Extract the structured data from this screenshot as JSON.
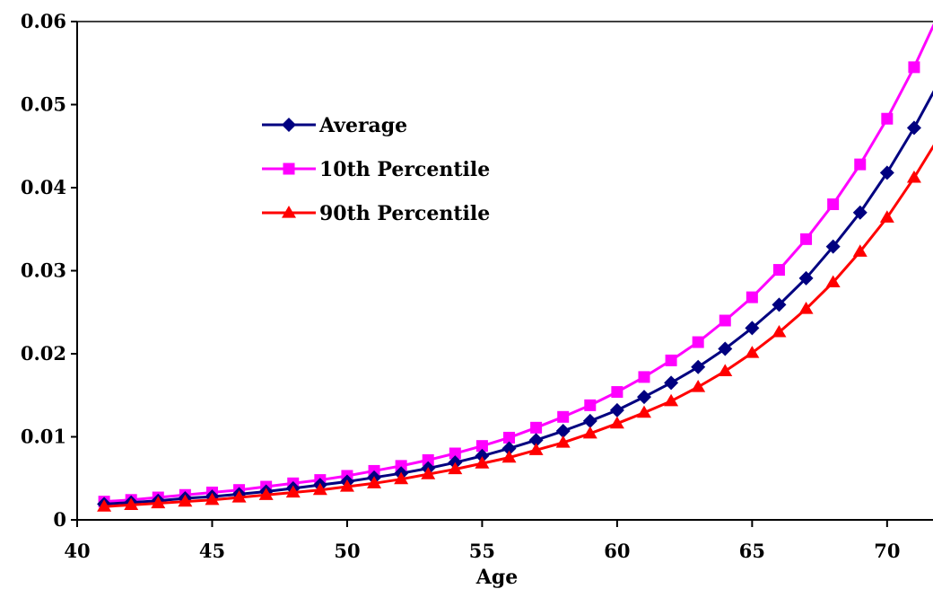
{
  "chart_data": {
    "type": "line",
    "title": "",
    "xlabel": "Age",
    "ylabel": "",
    "xlim": [
      40,
      71.7
    ],
    "ylim": [
      0,
      0.06
    ],
    "x_ticks": [
      "40",
      "45",
      "50",
      "55",
      "60",
      "65",
      "70"
    ],
    "y_ticks": [
      "0",
      "0.01",
      "0.02",
      "0.03",
      "0.04",
      "0.05",
      "0.06"
    ],
    "x": [
      41,
      42,
      43,
      44,
      45,
      46,
      47,
      48,
      49,
      50,
      51,
      52,
      53,
      54,
      55,
      56,
      57,
      58,
      59,
      60,
      61,
      62,
      63,
      64,
      65,
      66,
      67,
      68,
      69,
      70,
      71,
      72
    ],
    "grid": false,
    "legend_position": "upper-left-inside",
    "series": [
      {
        "name": "Average",
        "color": "#000080",
        "marker": "diamond",
        "values": [
          0.0019,
          0.0021,
          0.0023,
          0.0026,
          0.0028,
          0.0031,
          0.0034,
          0.0038,
          0.0042,
          0.0046,
          0.0051,
          0.0056,
          0.0062,
          0.0069,
          0.0077,
          0.0086,
          0.0096,
          0.0107,
          0.0119,
          0.0132,
          0.0148,
          0.0165,
          0.0184,
          0.0206,
          0.0231,
          0.0259,
          0.0291,
          0.0329,
          0.037,
          0.0418,
          0.0472,
          0.0532
        ]
      },
      {
        "name": "10th Percentile",
        "color": "#FF00FF",
        "marker": "square",
        "values": [
          0.0022,
          0.0024,
          0.0027,
          0.003,
          0.0033,
          0.0036,
          0.004,
          0.0044,
          0.0048,
          0.0053,
          0.0059,
          0.0065,
          0.0072,
          0.008,
          0.0089,
          0.0099,
          0.0111,
          0.0124,
          0.0138,
          0.0154,
          0.0172,
          0.0192,
          0.0214,
          0.024,
          0.0268,
          0.0301,
          0.0338,
          0.038,
          0.0428,
          0.0483,
          0.0545,
          0.0615
        ]
      },
      {
        "name": "90th Percentile",
        "color": "#FF0000",
        "marker": "triangle",
        "values": [
          0.0016,
          0.0018,
          0.002,
          0.0022,
          0.0024,
          0.0027,
          0.003,
          0.0033,
          0.0036,
          0.004,
          0.0044,
          0.0049,
          0.0055,
          0.0061,
          0.0068,
          0.0075,
          0.0084,
          0.0093,
          0.0104,
          0.0116,
          0.0129,
          0.0143,
          0.016,
          0.0179,
          0.0201,
          0.0226,
          0.0254,
          0.0286,
          0.0323,
          0.0364,
          0.0412,
          0.0465
        ]
      }
    ]
  }
}
